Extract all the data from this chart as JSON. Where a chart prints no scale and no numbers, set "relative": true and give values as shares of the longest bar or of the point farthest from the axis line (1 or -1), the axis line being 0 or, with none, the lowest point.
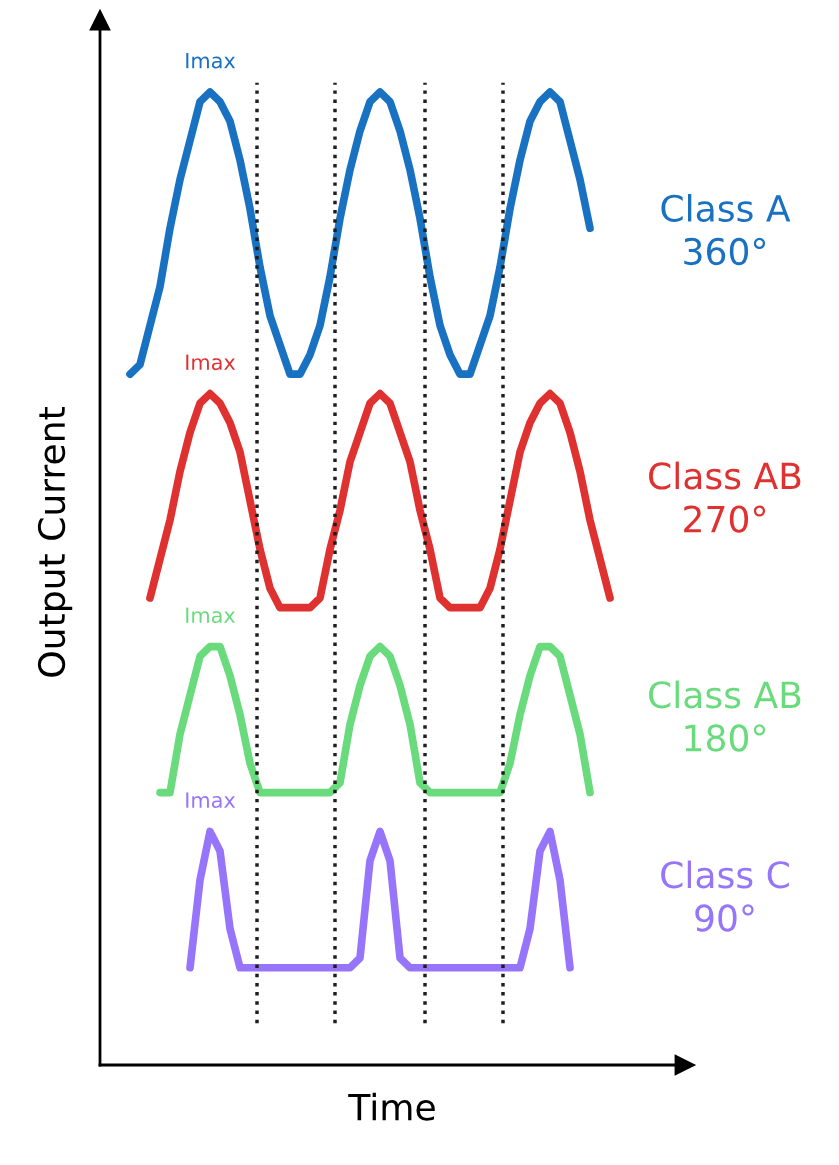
{
  "chart_data": {
    "type": "line",
    "relative": true,
    "xlabel": "Time",
    "ylabel": "Output Current",
    "marker": "none",
    "line_style": "solid",
    "categories": [
      null,
      null,
      null,
      null,
      null,
      null,
      null,
      null,
      null,
      null,
      null,
      null,
      null,
      null,
      null,
      null,
      null,
      null,
      null,
      null,
      null,
      null,
      null,
      null,
      null,
      null,
      null,
      null,
      null,
      null,
      null,
      null,
      null,
      null,
      null,
      null,
      null,
      null,
      null,
      null,
      null,
      null,
      null,
      null,
      null,
      null,
      null,
      null,
      null
    ],
    "series": [
      {
        "name": "Class A\n360°",
        "color": "#1971c2",
        "values": [
          0.71,
          0.72,
          0.76,
          0.8,
          0.86,
          0.91,
          0.95,
          0.99,
          1.0,
          0.99,
          0.97,
          0.93,
          0.88,
          0.82,
          0.77,
          0.74,
          0.71,
          0.71,
          0.73,
          0.76,
          0.81,
          0.87,
          0.92,
          0.96,
          0.99,
          1.0,
          0.99,
          0.96,
          0.92,
          0.87,
          0.81,
          0.76,
          0.73,
          0.71,
          0.71,
          0.74,
          0.77,
          0.82,
          0.88,
          0.93,
          0.97,
          0.99,
          1.0,
          0.99,
          0.95,
          0.91,
          0.86,
          null,
          null
        ]
      },
      {
        "name": "Class AB\n270°",
        "color": "#e03131",
        "values": [
          null,
          null,
          0.48,
          0.52,
          0.56,
          0.61,
          0.65,
          0.68,
          0.69,
          0.68,
          0.66,
          0.63,
          0.58,
          0.53,
          0.49,
          0.47,
          0.47,
          0.47,
          0.47,
          0.48,
          0.53,
          0.57,
          0.62,
          0.65,
          0.68,
          0.69,
          0.68,
          0.65,
          0.62,
          0.57,
          0.53,
          0.48,
          0.47,
          0.47,
          0.47,
          0.47,
          0.49,
          0.53,
          0.58,
          0.63,
          0.66,
          0.68,
          0.69,
          0.68,
          0.65,
          0.61,
          0.56,
          0.52,
          0.48
        ]
      },
      {
        "name": "Class AB\n180°",
        "color": "#69db7c",
        "values": [
          null,
          null,
          null,
          0.28,
          0.28,
          0.34,
          0.38,
          0.42,
          0.43,
          0.43,
          0.4,
          0.36,
          0.31,
          0.28,
          0.28,
          0.28,
          0.28,
          0.28,
          0.28,
          0.28,
          0.28,
          0.29,
          0.35,
          0.39,
          0.42,
          0.43,
          0.42,
          0.39,
          0.35,
          0.29,
          0.28,
          0.28,
          0.28,
          0.28,
          0.28,
          0.28,
          0.28,
          0.28,
          0.31,
          0.36,
          0.4,
          0.43,
          0.43,
          0.42,
          0.38,
          0.34,
          0.28,
          null,
          null
        ]
      },
      {
        "name": "Class C\n90°",
        "color": "#9775fa",
        "values": [
          null,
          null,
          null,
          null,
          null,
          null,
          0.1,
          0.19,
          0.24,
          0.22,
          0.14,
          0.1,
          0.1,
          0.1,
          0.1,
          0.1,
          0.1,
          0.1,
          0.1,
          0.1,
          0.1,
          0.1,
          0.1,
          0.11,
          0.21,
          0.24,
          0.21,
          0.11,
          0.1,
          0.1,
          0.1,
          0.1,
          0.1,
          0.1,
          0.1,
          0.1,
          0.1,
          0.1,
          0.1,
          0.1,
          0.14,
          0.22,
          0.24,
          0.19,
          0.1,
          null,
          null,
          null,
          null
        ]
      }
    ],
    "annotations": [
      "Imax",
      "Imax",
      "Imax",
      "Imax"
    ]
  }
}
